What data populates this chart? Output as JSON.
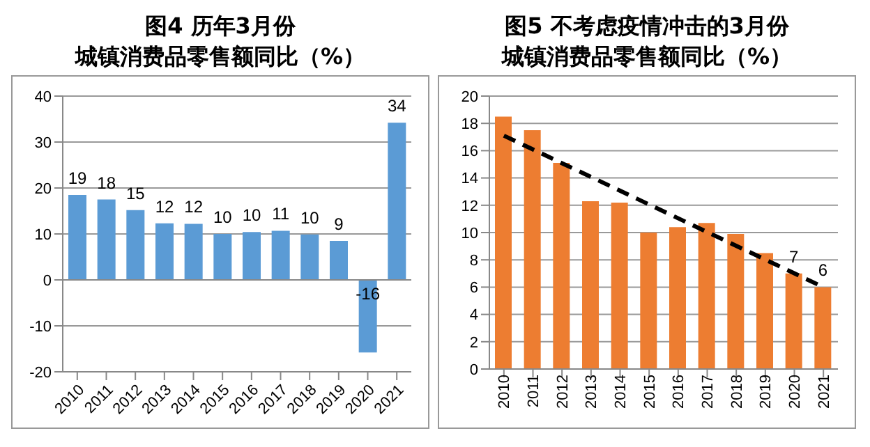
{
  "chart_data": [
    {
      "type": "bar",
      "title": "图4 历年3月份",
      "subtitle": "城镇消费品零售额同比（%）",
      "categories": [
        "2010",
        "2011",
        "2012",
        "2013",
        "2014",
        "2015",
        "2016",
        "2017",
        "2018",
        "2019",
        "2020",
        "2021"
      ],
      "series": [
        {
          "color": "#5b9bd5",
          "values": [
            18.5,
            17.5,
            15.2,
            12.3,
            12.2,
            10.0,
            10.4,
            10.7,
            9.9,
            8.5,
            -15.8,
            34.2
          ],
          "value_labels": [
            "19",
            "18",
            "15",
            "12",
            "12",
            "10",
            "10",
            "11",
            "10",
            "9",
            "-16",
            "34"
          ]
        }
      ],
      "ylim": [
        -20,
        40
      ],
      "yticks": [
        -20,
        -10,
        0,
        10,
        20,
        30,
        40
      ],
      "grid": "y",
      "legend": false
    },
    {
      "type": "bar",
      "title": "图5 不考虑疫情冲击的3月份",
      "subtitle": "城镇消费品零售额同比（%）",
      "categories": [
        "2010",
        "2011",
        "2012",
        "2013",
        "2014",
        "2015",
        "2016",
        "2017",
        "2018",
        "2019",
        "2020",
        "2021"
      ],
      "series": [
        {
          "color": "#ed7d31",
          "values": [
            18.5,
            17.5,
            15.1,
            12.3,
            12.2,
            10.0,
            10.4,
            10.7,
            9.9,
            8.5,
            7.0,
            6.0
          ],
          "value_labels": [
            null,
            null,
            null,
            null,
            null,
            null,
            null,
            null,
            null,
            null,
            "7",
            "6"
          ]
        },
        {
          "type": "line",
          "color": "#000000",
          "line_style": "dashed",
          "marker": "none",
          "values": [
            17.1,
            null,
            null,
            null,
            null,
            null,
            null,
            null,
            null,
            null,
            null,
            6.0
          ]
        }
      ],
      "ylim": [
        0,
        20
      ],
      "yticks": [
        0,
        2,
        4,
        6,
        8,
        10,
        12,
        14,
        16,
        18,
        20
      ],
      "grid": "y",
      "legend": false
    }
  ]
}
